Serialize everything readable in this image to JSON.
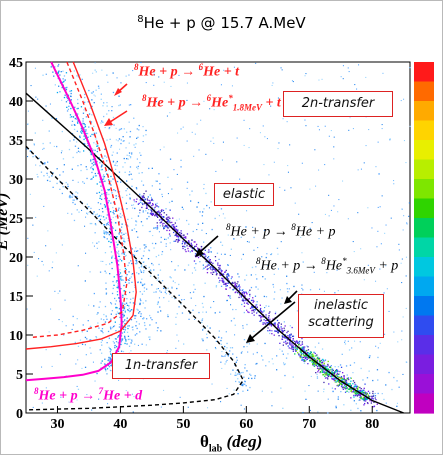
{
  "chart_data": {
    "type": "scatter",
    "title": "He + p  @ 15.7 A.MeV",
    "title_sup": "8",
    "xlabel": "θ",
    "xlabel_sub": "lab",
    "xlabel_unit": "(deg)",
    "ylabel": "E (MeV)",
    "xlim": [
      25,
      86
    ],
    "ylim": [
      0,
      45
    ],
    "x_ticks": [
      "30",
      "40",
      "50",
      "60",
      "70",
      "80"
    ],
    "y_ticks": [
      "0",
      "5",
      "10",
      "15",
      "20",
      "25",
      "30",
      "35",
      "40",
      "45"
    ],
    "colorbar_colors": [
      "#ff1a1a",
      "#ff6a00",
      "#ffaa00",
      "#ffd400",
      "#e8ef00",
      "#b8ee00",
      "#7ee600",
      "#2fd400",
      "#00d05a",
      "#00d6a6",
      "#00c8e0",
      "#00a8f0",
      "#0078f0",
      "#2f4cf0",
      "#5a2ee8",
      "#7a1ee0",
      "#9a10d8",
      "#c000c0"
    ],
    "curves": [
      {
        "name": "elastic",
        "color": "#000000",
        "style": "solid",
        "x": [
          25,
          30,
          35,
          40,
          45,
          50,
          55,
          60,
          65,
          70,
          75,
          80,
          85
        ],
        "y": [
          41.0,
          37.4,
          33.8,
          30.0,
          26.2,
          22.3,
          18.6,
          14.6,
          10.7,
          7.2,
          4.1,
          1.6,
          0.0
        ]
      },
      {
        "name": "inelastic scattering",
        "color": "#000000",
        "style": "dashed",
        "x": [
          25,
          30,
          35,
          40,
          45,
          50,
          55,
          58,
          59.5,
          58,
          55,
          50,
          45,
          40,
          35,
          30,
          25
        ],
        "y": [
          34.2,
          30.0,
          26.0,
          21.8,
          17.8,
          13.8,
          9.6,
          6.6,
          4.2,
          2.4,
          1.7,
          1.3,
          1.0,
          0.8,
          0.6,
          0.5,
          0.4
        ]
      },
      {
        "name": "1n-transfer",
        "color": "#ff00cc",
        "style": "solid",
        "x": [
          29,
          32,
          34,
          36,
          37.5,
          38.5,
          39.5,
          40,
          40.2,
          39.8,
          38.5,
          36.5,
          34,
          31,
          28,
          25
        ],
        "y": [
          45,
          40,
          36.5,
          32.5,
          28.5,
          24,
          19,
          15,
          11.5,
          8.5,
          6.5,
          5.4,
          4.9,
          4.6,
          4.4,
          4.2
        ]
      },
      {
        "name": "2n-transfer 6He+t",
        "color": "#ff2222",
        "style": "solid",
        "x": [
          32.5,
          35,
          37.5,
          39.5,
          41,
          42,
          42.5,
          42,
          40,
          37,
          33,
          29,
          25
        ],
        "y": [
          45,
          40,
          34.5,
          29,
          24,
          19.5,
          15.5,
          12.5,
          10.5,
          9.5,
          8.9,
          8.5,
          8.2
        ]
      },
      {
        "name": "2n-transfer 6He* 1.8MeV + t",
        "color": "#ff2222",
        "style": "dashed",
        "x": [
          31.5,
          34,
          36,
          38,
          39.5,
          40.5,
          41,
          40.3,
          38,
          34,
          30,
          26
        ],
        "y": [
          45,
          40,
          35.5,
          30.5,
          25.5,
          20.5,
          16.5,
          13,
          11.5,
          10.6,
          10.0,
          9.7
        ]
      }
    ],
    "labels": {
      "two_n_transfer": "2n-transfer",
      "elastic": "elastic",
      "inelastic_line1": "inelastic",
      "inelastic_line2": "scattering",
      "one_n_transfer": "1n-transfer"
    },
    "reactions": {
      "r1": {
        "a": "8",
        "b": "He + p → ",
        "c": "6",
        "d": "He + t"
      },
      "r2": {
        "a": "8",
        "b": "He + p → ",
        "c": "6",
        "d": "He",
        "sup": "*",
        "sub": "1.8MeV",
        "e": " + t"
      },
      "r3": {
        "a": "8",
        "b": "He + p → ",
        "c": "8",
        "d": "He + p"
      },
      "r4": {
        "a": "8",
        "b": "He + p → ",
        "c": "8",
        "d": "He",
        "sup": "*",
        "sub": "3.6MeV",
        "e": " + p"
      },
      "r5": {
        "a": "8",
        "b": "He + p → ",
        "c": "7",
        "d": "He + d"
      }
    }
  }
}
